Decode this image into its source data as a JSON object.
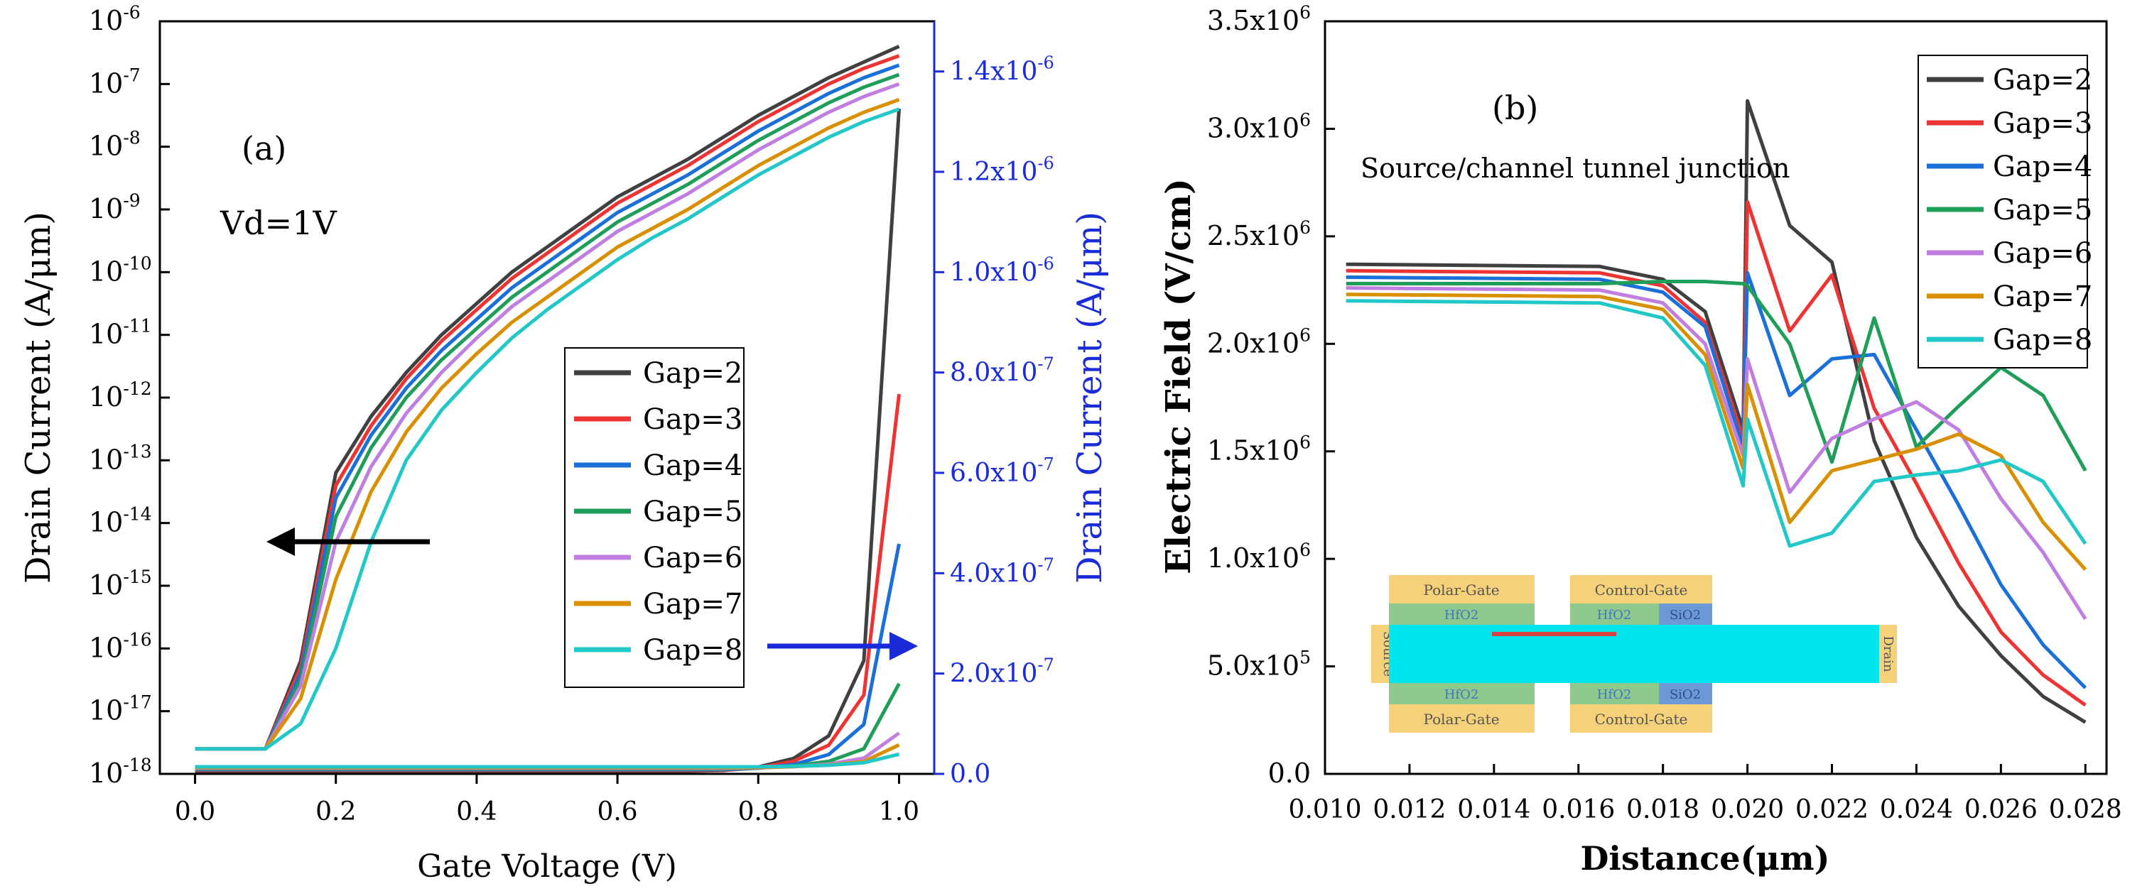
{
  "chart_data": [
    {
      "panel": "(a)",
      "type": "line",
      "annotation": "Vd=1V",
      "xlabel": "Gate Voltage (V)",
      "ylabel_left": "Drain Current (A/μm)",
      "ylabel_right": "Drain Current (A/μm)",
      "x_ticks": [
        "0.0",
        "0.2",
        "0.4",
        "0.6",
        "0.8",
        "1.0"
      ],
      "xlim": [
        -0.05,
        1.05
      ],
      "y_left_scale": "log",
      "y_left_exponents": [
        "-18",
        "-17",
        "-16",
        "-15",
        "-14",
        "-13",
        "-12",
        "-11",
        "-10",
        "-9",
        "-8",
        "-7",
        "-6"
      ],
      "y_left_lim_exp": [
        -18,
        -6
      ],
      "y_right_ticks": [
        "0.0",
        "2.0x10-7",
        "4.0x10-7",
        "6.0x10-7",
        "8.0x10-7",
        "1.0x10-6",
        "1.2x10-6",
        "1.4x10-6"
      ],
      "y_right_lim": [
        0,
        1.5e-06
      ],
      "x": [
        0.0,
        0.05,
        0.1,
        0.15,
        0.2,
        0.25,
        0.3,
        0.35,
        0.4,
        0.45,
        0.5,
        0.55,
        0.6,
        0.65,
        0.7,
        0.75,
        0.8,
        0.85,
        0.9,
        0.95,
        1.0
      ],
      "series": [
        {
          "name": "Gap=2",
          "color": "#404040",
          "log_values": [
            -17.6,
            -17.6,
            -17.6,
            -16.2,
            -13.2,
            -12.3,
            -11.6,
            -11.0,
            -10.5,
            -10.0,
            -9.6,
            -9.2,
            -8.8,
            -8.5,
            -8.2,
            -7.85,
            -7.5,
            -7.2,
            -6.9,
            -6.65,
            -6.4
          ],
          "linear_values": [
            0,
            0,
            0,
            0,
            0,
            0,
            0,
            0,
            0,
            0,
            0,
            0,
            0,
            0,
            0,
            1e-09,
            8e-09,
            2.5e-08,
            7e-08,
            2.2e-07,
            1.32e-06
          ]
        },
        {
          "name": "Gap=3",
          "color": "#ee3333",
          "log_values": [
            -17.6,
            -17.6,
            -17.6,
            -16.3,
            -13.4,
            -12.45,
            -11.7,
            -11.1,
            -10.6,
            -10.1,
            -9.7,
            -9.3,
            -8.9,
            -8.6,
            -8.3,
            -7.95,
            -7.6,
            -7.3,
            -7.0,
            -6.75,
            -6.55
          ],
          "linear_values": [
            0,
            0,
            0,
            0,
            0,
            0,
            0,
            0,
            0,
            0,
            0,
            0,
            0,
            0,
            0,
            0,
            5e-09,
            1.8e-08,
            5e-08,
            1.5e-07,
            7.5e-07
          ]
        },
        {
          "name": "Gap=4",
          "color": "#1a6fd8",
          "log_values": [
            -17.6,
            -17.6,
            -17.6,
            -16.4,
            -13.6,
            -12.6,
            -11.85,
            -11.25,
            -10.75,
            -10.25,
            -9.85,
            -9.45,
            -9.05,
            -8.75,
            -8.45,
            -8.1,
            -7.75,
            -7.45,
            -7.15,
            -6.9,
            -6.7
          ],
          "linear_values": [
            0,
            0,
            0,
            0,
            0,
            0,
            0,
            0,
            0,
            0,
            0,
            0,
            0,
            0,
            0,
            0,
            3e-09,
            1e-08,
            3e-08,
            9e-08,
            4.5e-07
          ]
        },
        {
          "name": "Gap=5",
          "color": "#1f9e5a",
          "log_values": [
            -17.6,
            -17.6,
            -17.6,
            -16.5,
            -13.9,
            -12.8,
            -12.0,
            -11.4,
            -10.9,
            -10.4,
            -10.0,
            -9.6,
            -9.2,
            -8.9,
            -8.6,
            -8.25,
            -7.9,
            -7.6,
            -7.3,
            -7.05,
            -6.85
          ],
          "linear_values": [
            0,
            0,
            0,
            0,
            0,
            0,
            0,
            0,
            0,
            0,
            0,
            0,
            0,
            0,
            0,
            0,
            2e-09,
            6e-09,
            1.5e-08,
            4e-08,
            1.7e-07
          ]
        },
        {
          "name": "Gap=6",
          "color": "#c07ee0",
          "log_values": [
            -17.6,
            -17.6,
            -17.6,
            -16.6,
            -14.3,
            -13.1,
            -12.25,
            -11.6,
            -11.05,
            -10.55,
            -10.15,
            -9.75,
            -9.35,
            -9.05,
            -8.75,
            -8.4,
            -8.05,
            -7.75,
            -7.45,
            -7.2,
            -7.0
          ],
          "linear_values": [
            0,
            0,
            0,
            0,
            0,
            0,
            0,
            0,
            0,
            0,
            0,
            0,
            0,
            0,
            0,
            0,
            1e-09,
            3e-09,
            8e-09,
            2e-08,
            7e-08
          ]
        },
        {
          "name": "Gap=7",
          "color": "#d89000",
          "log_values": [
            -17.6,
            -17.6,
            -17.6,
            -16.8,
            -14.9,
            -13.5,
            -12.55,
            -11.85,
            -11.3,
            -10.8,
            -10.4,
            -10.0,
            -9.6,
            -9.3,
            -9.0,
            -8.65,
            -8.3,
            -8.0,
            -7.7,
            -7.45,
            -7.25
          ],
          "linear_values": [
            0,
            0,
            0,
            0,
            0,
            0,
            0,
            0,
            0,
            0,
            0,
            0,
            0,
            0,
            0,
            0,
            0,
            2e-09,
            5e-09,
            1.2e-08,
            4.5e-08
          ]
        },
        {
          "name": "Gap=8",
          "color": "#22c8c8",
          "log_values": [
            -17.6,
            -17.6,
            -17.6,
            -17.2,
            -16.0,
            -14.3,
            -13.0,
            -12.2,
            -11.6,
            -11.05,
            -10.6,
            -10.2,
            -9.8,
            -9.45,
            -9.15,
            -8.8,
            -8.45,
            -8.15,
            -7.85,
            -7.6,
            -7.4
          ],
          "linear_values": [
            0,
            0,
            0,
            0,
            0,
            0,
            0,
            0,
            0,
            0,
            0,
            0,
            0,
            0,
            0,
            0,
            0,
            1e-09,
            3e-09,
            8e-09,
            2.5e-08
          ]
        }
      ]
    },
    {
      "panel": "(b)",
      "type": "line",
      "annotation": "Source/channel tunnel junction",
      "xlabel": "Distance(μm)",
      "ylabel": "Electric Field (V/cm)",
      "x_ticks": [
        "0.010",
        "0.012",
        "0.014",
        "0.016",
        "0.018",
        "0.020",
        "0.022",
        "0.024",
        "0.026",
        "0.028"
      ],
      "xlim": [
        0.01,
        0.0285
      ],
      "y_ticks": [
        "0.0",
        "5.0x105",
        "1.0x106",
        "1.5x106",
        "2.0x106",
        "2.5x106",
        "3.0x106",
        "3.5x106"
      ],
      "ylim": [
        0,
        3500000.0
      ],
      "inset": {
        "polar_gate_label": "Polar-Gate",
        "control_gate_label": "Control-Gate",
        "hfo2_label": "HfO2",
        "sio2_label": "SiO2",
        "source_label": "Source",
        "drain_label": "Drain"
      },
      "series": [
        {
          "name": "Gap=2",
          "color": "#404040",
          "x": [
            0.0105,
            0.0165,
            0.018,
            0.019,
            0.0199,
            0.02,
            0.021,
            0.022,
            0.023,
            0.024,
            0.025,
            0.026,
            0.027,
            0.028
          ],
          "values": [
            2370000,
            2360000,
            2300000,
            2150000,
            1600000,
            3130000,
            2550000,
            2380000,
            1550000,
            1100000,
            780000,
            550000,
            360000,
            240000
          ]
        },
        {
          "name": "Gap=3",
          "color": "#ee3333",
          "x": [
            0.0105,
            0.0165,
            0.018,
            0.019,
            0.0199,
            0.02,
            0.021,
            0.022,
            0.023,
            0.024,
            0.025,
            0.026,
            0.027,
            0.028
          ],
          "values": [
            2340000,
            2330000,
            2270000,
            2100000,
            1560000,
            2660000,
            2060000,
            2320000,
            1700000,
            1350000,
            980000,
            660000,
            460000,
            320000
          ]
        },
        {
          "name": "Gap=4",
          "color": "#1a6fd8",
          "x": [
            0.0105,
            0.0165,
            0.018,
            0.019,
            0.0199,
            0.02,
            0.021,
            0.022,
            0.023,
            0.024,
            0.025,
            0.026,
            0.027,
            0.028
          ],
          "values": [
            2310000,
            2300000,
            2240000,
            2080000,
            1520000,
            2330000,
            1760000,
            1930000,
            1950000,
            1600000,
            1250000,
            880000,
            600000,
            400000
          ]
        },
        {
          "name": "Gap=5",
          "color": "#1f9e5a",
          "x": [
            0.0105,
            0.0165,
            0.018,
            0.019,
            0.0199,
            0.02,
            0.021,
            0.022,
            0.023,
            0.024,
            0.025,
            0.026,
            0.027,
            0.028
          ],
          "values": [
            2280000,
            2280000,
            2290000,
            2290000,
            2280000,
            2270000,
            2000000,
            1450000,
            2120000,
            1520000,
            1710000,
            1890000,
            1760000,
            1410000
          ]
        },
        {
          "name": "Gap=6",
          "color": "#c07ee0",
          "x": [
            0.0105,
            0.0165,
            0.018,
            0.019,
            0.0199,
            0.02,
            0.021,
            0.022,
            0.023,
            0.024,
            0.025,
            0.026,
            0.027,
            0.028
          ],
          "values": [
            2260000,
            2250000,
            2190000,
            2000000,
            1480000,
            1930000,
            1310000,
            1560000,
            1650000,
            1730000,
            1600000,
            1280000,
            1030000,
            720000
          ]
        },
        {
          "name": "Gap=7",
          "color": "#d89000",
          "x": [
            0.0105,
            0.0165,
            0.018,
            0.019,
            0.0199,
            0.02,
            0.021,
            0.022,
            0.023,
            0.024,
            0.025,
            0.026,
            0.027,
            0.028
          ],
          "values": [
            2230000,
            2220000,
            2160000,
            1950000,
            1420000,
            1810000,
            1170000,
            1410000,
            1460000,
            1510000,
            1580000,
            1480000,
            1170000,
            950000
          ]
        },
        {
          "name": "Gap=8",
          "color": "#22c8c8",
          "x": [
            0.0105,
            0.0165,
            0.018,
            0.019,
            0.0199,
            0.02,
            0.021,
            0.022,
            0.023,
            0.024,
            0.025,
            0.026,
            0.027,
            0.028
          ],
          "values": [
            2200000,
            2190000,
            2120000,
            1900000,
            1340000,
            1650000,
            1060000,
            1120000,
            1360000,
            1390000,
            1410000,
            1460000,
            1360000,
            1070000
          ]
        }
      ]
    }
  ]
}
